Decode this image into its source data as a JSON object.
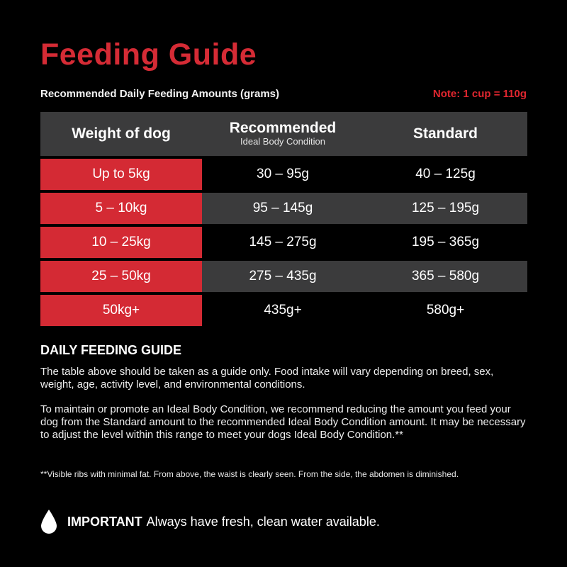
{
  "title": "Feeding Guide",
  "subtitle": "Recommended Daily Feeding Amounts (grams)",
  "note": "Note: 1 cup = 110g",
  "colors": {
    "accent_red": "#d42a34",
    "header_grey": "#3b3b3c",
    "background": "#000000"
  },
  "table": {
    "headers": {
      "weight": "Weight of dog",
      "recommended": "Recommended",
      "recommended_sub": "Ideal Body Condition",
      "standard": "Standard"
    },
    "rows": [
      {
        "weight": "Up to 5kg",
        "recommended": "30 – 95g",
        "standard": "40 – 125g"
      },
      {
        "weight": "5 – 10kg",
        "recommended": "95 – 145g",
        "standard": "125 – 195g"
      },
      {
        "weight": "10 – 25kg",
        "recommended": "145 – 275g",
        "standard": "195 – 365g"
      },
      {
        "weight": "25 – 50kg",
        "recommended": "275 – 435g",
        "standard": "365 – 580g"
      },
      {
        "weight": "50kg+",
        "recommended": "435g+",
        "standard": "580g+"
      }
    ]
  },
  "section": {
    "heading": "DAILY FEEDING GUIDE",
    "paragraph1": "The table above should be taken as a guide only. Food intake will vary depending on breed, sex, weight, age, activity level, and environmental conditions.",
    "paragraph2": "To maintain or promote an Ideal Body Condition, we recommend reducing the amount you feed your dog from the Standard amount to the recommended Ideal Body Condition amount. It may be necessary to adjust the level within this range to meet your dogs Ideal Body Condition.**",
    "footnote": "**Visible ribs with minimal fat. From above, the waist is clearly seen. From the side, the abdomen is diminished."
  },
  "important": {
    "icon": "water-drop-icon",
    "label": "IMPORTANT",
    "text": "Always have fresh, clean water available."
  }
}
